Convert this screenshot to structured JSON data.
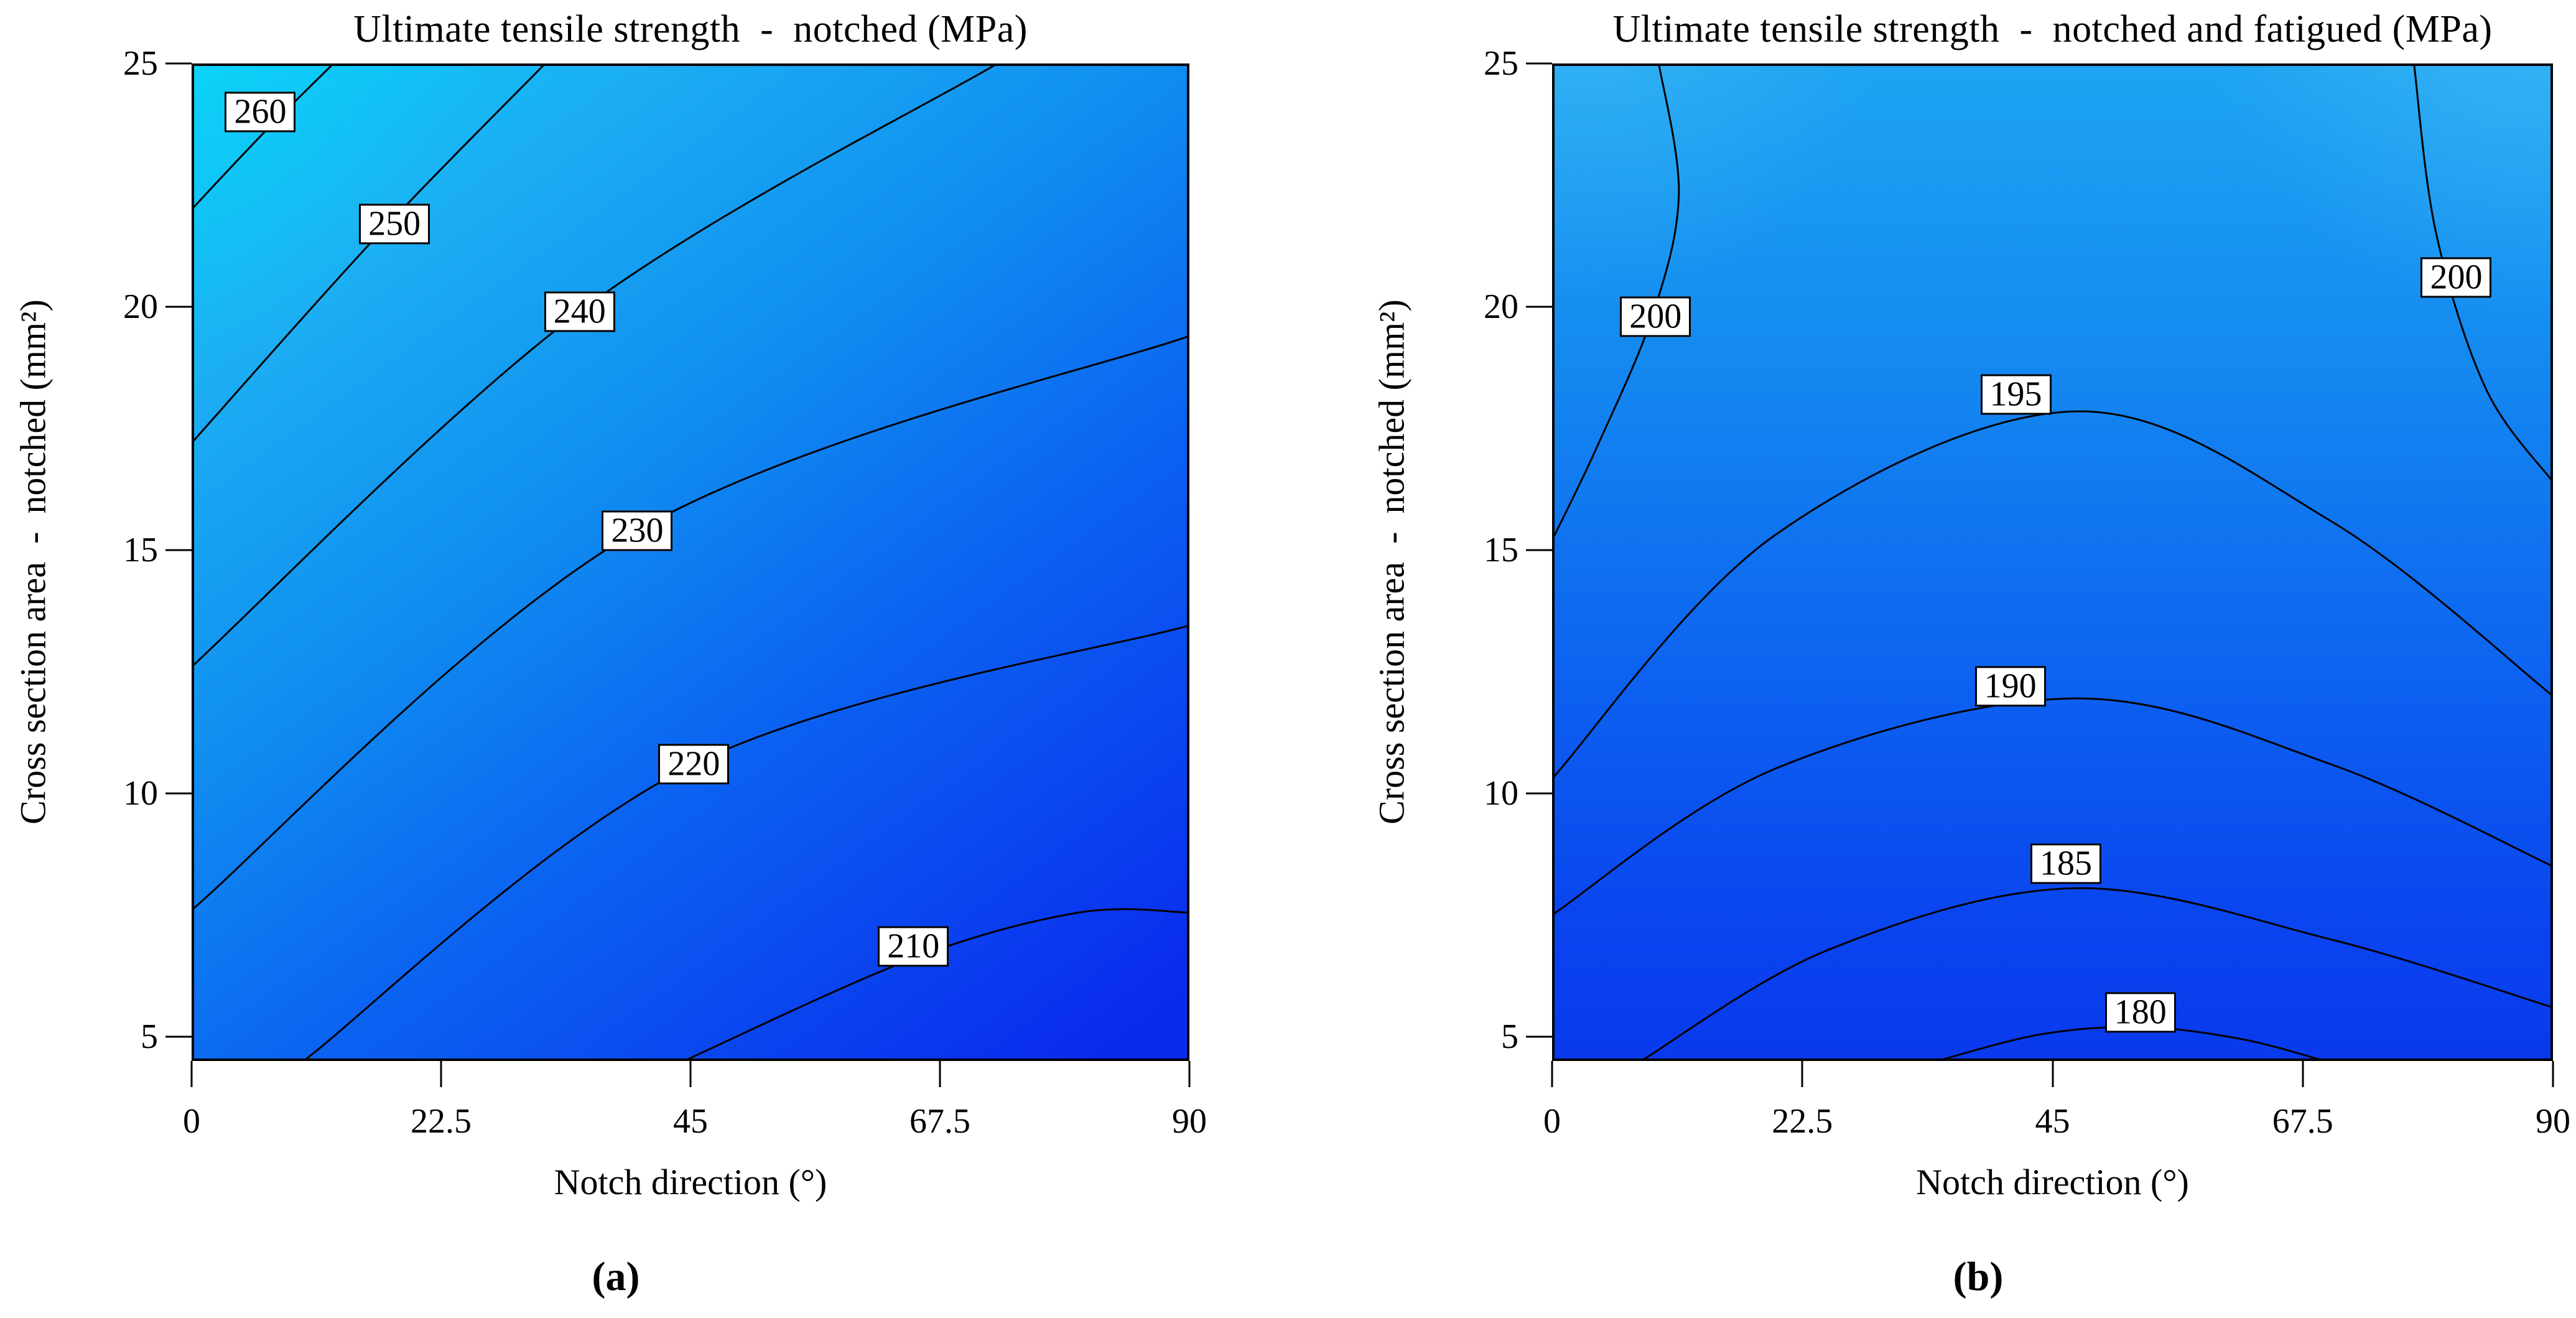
{
  "figure": {
    "background": "#ffffff",
    "contour_line_color": "#000000",
    "label_box_bg": "#ffffff",
    "panel_a_label": "(a)",
    "panel_b_label": "(b)"
  },
  "chart_data": [
    {
      "type": "contour",
      "panel": "a",
      "title": "Ultimate tensile strength  -  notched (MPa)",
      "xlabel": "Notch direction (°)",
      "ylabel": "Cross section area  -  notched (mm²)",
      "xlim": [
        0,
        90
      ],
      "ylim": [
        4.5,
        25
      ],
      "x_ticks": [
        "0",
        "22.5",
        "45",
        "67.5",
        "90"
      ],
      "x_tick_values": [
        0,
        22.5,
        45,
        67.5,
        90
      ],
      "y_ticks": [
        "25",
        "20",
        "15",
        "10",
        "5"
      ],
      "y_tick_values": [
        25,
        20,
        15,
        10,
        5
      ],
      "grid": false,
      "legend": "none",
      "gradient": {
        "direction": "diagonal",
        "x2": 0.78,
        "y2": 1.08,
        "stops": [
          [
            "0%",
            "#06CFF7"
          ],
          [
            "20%",
            "#1CAEF3"
          ],
          [
            "42%",
            "#1090F0"
          ],
          [
            "66%",
            "#0B62F1"
          ],
          [
            "100%",
            "#0A2BEE"
          ]
        ],
        "glows": [
          {
            "cx": "0%",
            "cy": "0%",
            "r": "30%",
            "color": "#17DAF9",
            "opacity": 0.3
          }
        ]
      },
      "contours": [
        {
          "level": "260",
          "label_at": [
            6.2,
            24.0
          ],
          "points": [
            [
              0,
              22.0
            ],
            [
              6.4,
              23.55
            ],
            [
              12.8,
              25
            ]
          ]
        },
        {
          "level": "250",
          "label_at": [
            18.3,
            21.7
          ],
          "points": [
            [
              0,
              17.2
            ],
            [
              16.5,
              21.4
            ],
            [
              31.9,
              25
            ]
          ]
        },
        {
          "level": "240",
          "label_at": [
            35.0,
            19.9
          ],
          "points": [
            [
              0,
              12.6
            ],
            [
              35.0,
              19.9
            ],
            [
              72.7,
              25
            ]
          ]
        },
        {
          "level": "230",
          "label_at": [
            40.2,
            15.4
          ],
          "points": [
            [
              0,
              7.6
            ],
            [
              40.2,
              15.4
            ],
            [
              90,
              19.4
            ]
          ]
        },
        {
          "level": "220",
          "label_at": [
            45.3,
            10.6
          ],
          "points": [
            [
              10.1,
              4.5
            ],
            [
              45.3,
              10.6
            ],
            [
              90,
              13.45
            ]
          ]
        },
        {
          "level": "210",
          "label_at": [
            65.1,
            6.85
          ],
          "points": [
            [
              44.4,
              4.5
            ],
            [
              65.0,
              6.6
            ],
            [
              80.0,
              7.55
            ],
            [
              90,
              7.55
            ]
          ]
        }
      ]
    },
    {
      "type": "contour",
      "panel": "b",
      "title": "Ultimate tensile strength  -  notched and fatigued (MPa)",
      "xlabel": "Notch direction (°)",
      "ylabel": "Cross section area  -  notched (mm²)",
      "xlim": [
        0,
        90
      ],
      "ylim": [
        4.5,
        25
      ],
      "x_ticks": [
        "0",
        "22.5",
        "45",
        "67.5",
        "90"
      ],
      "x_tick_values": [
        0,
        22.5,
        45,
        67.5,
        90
      ],
      "y_ticks": [
        "25",
        "20",
        "15",
        "10",
        "5"
      ],
      "y_tick_values": [
        25,
        20,
        15,
        10,
        5
      ],
      "grid": false,
      "legend": "none",
      "gradient": {
        "direction": "vertical",
        "stops": [
          [
            "0%",
            "#1EA4F2"
          ],
          [
            "30%",
            "#1489F0"
          ],
          [
            "60%",
            "#0D64F0"
          ],
          [
            "85%",
            "#0A46EF"
          ],
          [
            "100%",
            "#0939EE"
          ]
        ],
        "glows": [
          {
            "cx": "3%",
            "cy": "-6%",
            "r": "30%",
            "color": "#45BDF6",
            "opacity": 0.55
          },
          {
            "cx": "99%",
            "cy": "-8%",
            "r": "34%",
            "color": "#4FC2F7",
            "opacity": 0.55
          }
        ]
      },
      "contours": [
        {
          "level": "200",
          "label_at": [
            9.3,
            19.8
          ],
          "points": [
            [
              9.6,
              25
            ],
            [
              11.4,
              22.3
            ],
            [
              9.0,
              19.8
            ],
            [
              4.0,
              17.1
            ],
            [
              0,
              15.2
            ]
          ]
        },
        {
          "level": "200",
          "label_at": [
            81.3,
            20.6
          ],
          "points": [
            [
              77.5,
              25
            ],
            [
              79.5,
              21.5
            ],
            [
              84.0,
              18.3
            ],
            [
              90,
              16.4
            ]
          ]
        },
        {
          "level": "195",
          "label_at": [
            41.7,
            18.2
          ],
          "points": [
            [
              0,
              10.3
            ],
            [
              20,
              15.3
            ],
            [
              47,
              17.85
            ],
            [
              70,
              15.6
            ],
            [
              90,
              12.0
            ]
          ]
        },
        {
          "level": "190",
          "label_at": [
            41.2,
            12.2
          ],
          "points": [
            [
              0,
              7.5
            ],
            [
              20,
              10.5
            ],
            [
              47,
              11.95
            ],
            [
              70,
              10.6
            ],
            [
              90,
              8.5
            ]
          ]
        },
        {
          "level": "185",
          "label_at": [
            46.2,
            8.55
          ],
          "points": [
            [
              8,
              4.5
            ],
            [
              25,
              6.8
            ],
            [
              47,
              8.05
            ],
            [
              70,
              7.0
            ],
            [
              90,
              5.6
            ]
          ]
        },
        {
          "level": "180",
          "label_at": [
            52.9,
            5.5
          ],
          "points": [
            [
              34.6,
              4.5
            ],
            [
              44,
              5.05
            ],
            [
              53,
              5.2
            ],
            [
              62,
              4.95
            ],
            [
              69.5,
              4.5
            ]
          ]
        }
      ]
    }
  ]
}
